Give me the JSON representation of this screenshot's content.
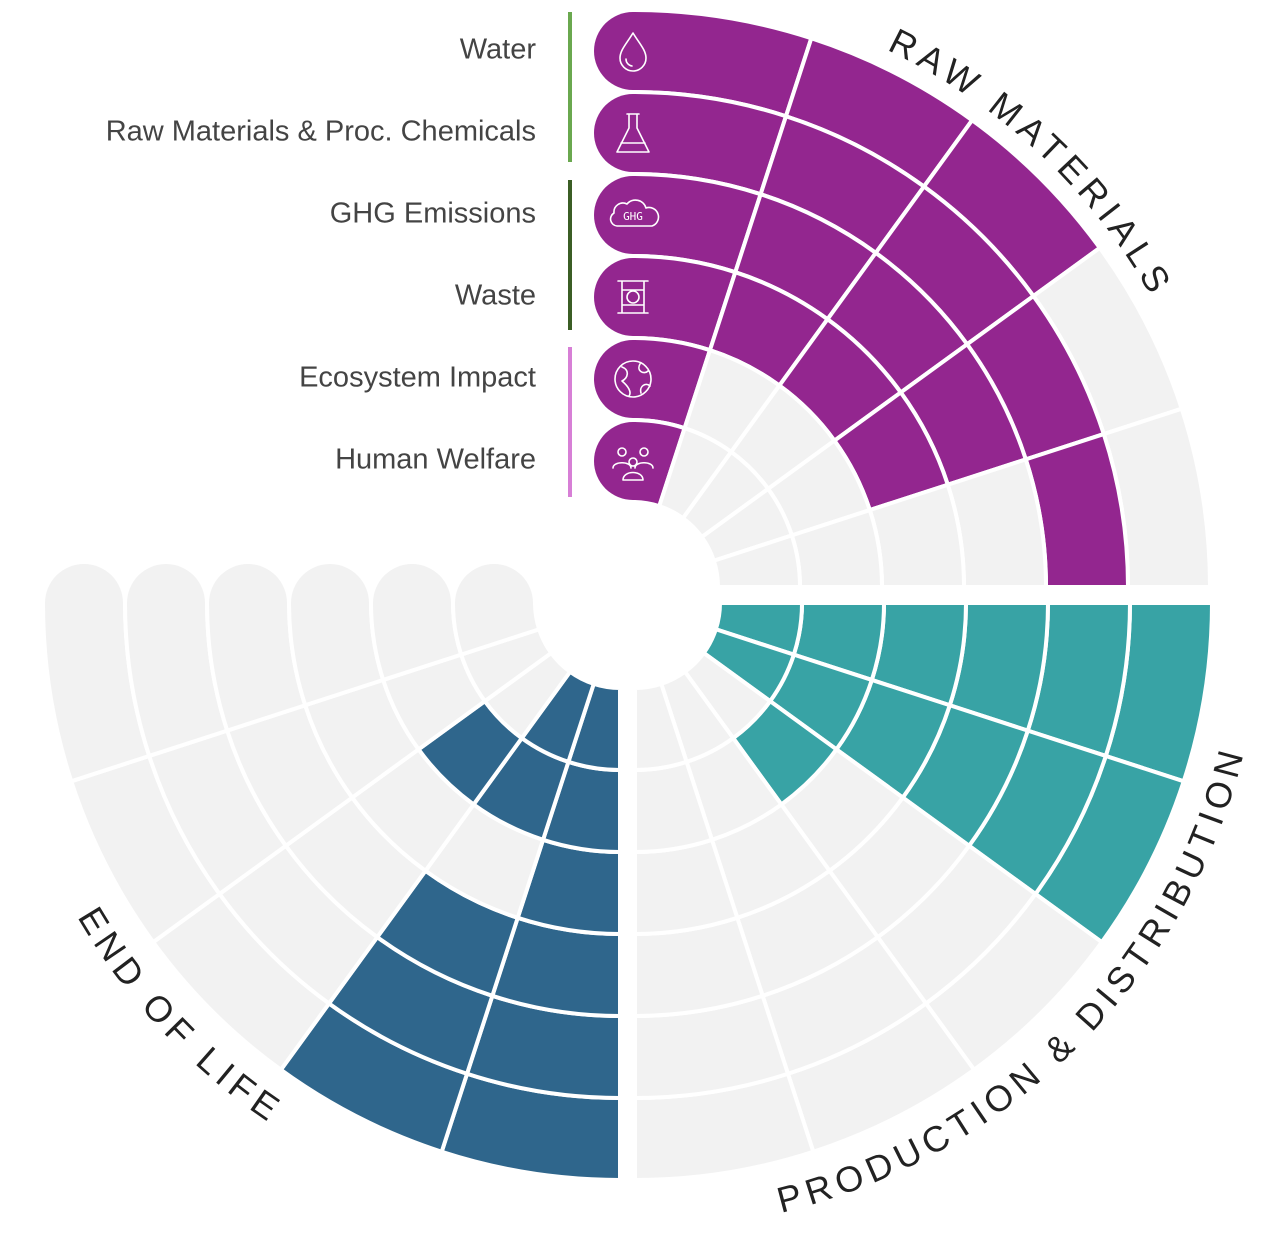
{
  "chart_data": {
    "type": "radial",
    "categories": [
      "Water",
      "Raw Materials & Proc. Chemicals",
      "GHG Emissions",
      "Waste",
      "Ecosystem Impact",
      "Human Welfare"
    ],
    "icon_label": "GHG",
    "empty_color": "#f2f2f2",
    "series": [
      {
        "name": "RAW MATERIALS",
        "color": "#93268f",
        "values": [
          [
            1,
            1,
            1,
            1,
            1,
            1
          ],
          [
            1,
            1,
            1,
            1,
            0,
            0
          ],
          [
            1,
            1,
            1,
            1,
            0,
            0
          ],
          [
            0,
            1,
            1,
            1,
            0,
            0
          ],
          [
            0,
            1,
            0,
            0,
            0,
            0
          ]
        ]
      },
      {
        "name": "PRODUCTION & DISTRIBUTION",
        "color": "#38a3a5",
        "values": [
          [
            1,
            1,
            1,
            1,
            1,
            1
          ],
          [
            1,
            1,
            1,
            1,
            1,
            1
          ],
          [
            0,
            0,
            0,
            0,
            1,
            0
          ],
          [
            0,
            0,
            0,
            0,
            0,
            0
          ],
          [
            0,
            0,
            0,
            0,
            0,
            0
          ]
        ]
      },
      {
        "name": "END OF LIFE",
        "color": "#2f668c",
        "values": [
          [
            1,
            1,
            1,
            1,
            1,
            1
          ],
          [
            1,
            1,
            1,
            0,
            1,
            1
          ],
          [
            0,
            0,
            0,
            0,
            1,
            0
          ],
          [
            0,
            0,
            0,
            0,
            0,
            0
          ],
          [
            0,
            0,
            0,
            0,
            0,
            0
          ]
        ]
      }
    ]
  }
}
